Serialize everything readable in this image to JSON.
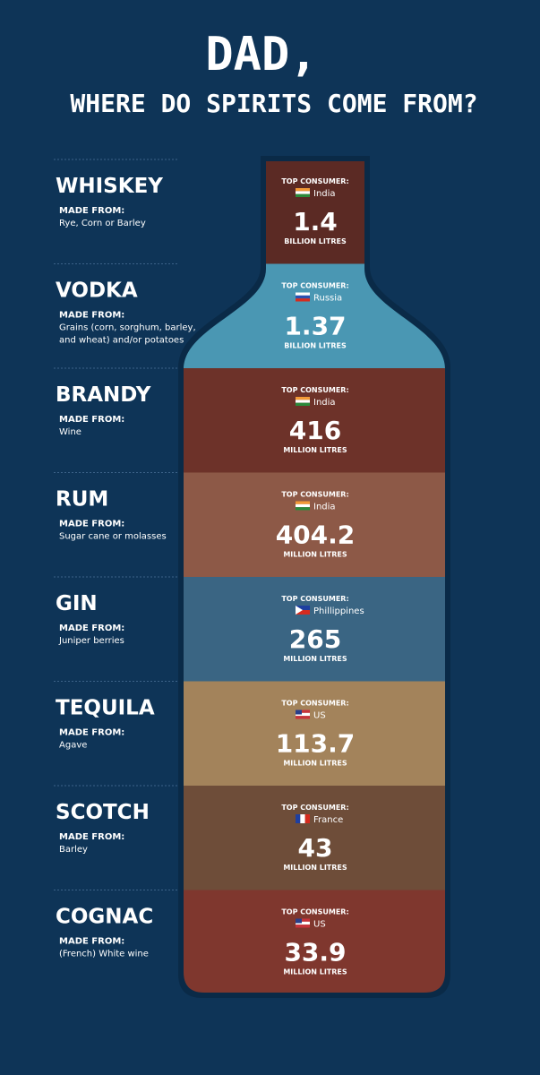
{
  "header": {
    "title": "DAD,",
    "subtitle": "WHERE DO SPIRITS COME FROM?"
  },
  "spirits": [
    {
      "name": "WHISKEY",
      "made_from_label": "MADE FROM:",
      "made_from": [
        "Rye, Corn or Barley"
      ],
      "consumer_label": "TOP CONSUMER:",
      "country": "India",
      "amount": "1.4",
      "unit": "BILLION LITRES",
      "color": "#5b2a24",
      "flag": "in"
    },
    {
      "name": "VODKA",
      "made_from_label": "MADE FROM:",
      "made_from": [
        "Grains (corn, sorghum, barley,",
        "and wheat) and/or potatoes"
      ],
      "consumer_label": "TOP CONSUMER:",
      "country": "Russia",
      "amount": "1.37",
      "unit": "BILLION LITRES",
      "color": "#4a97b3",
      "flag": "ru"
    },
    {
      "name": "BRANDY",
      "made_from_label": "MADE FROM:",
      "made_from": [
        "Wine"
      ],
      "consumer_label": "TOP CONSUMER:",
      "country": "India",
      "amount": "416",
      "unit": "MILLION LITRES",
      "color": "#6d3229",
      "flag": "in"
    },
    {
      "name": "RUM",
      "made_from_label": "MADE FROM:",
      "made_from": [
        "Sugar cane or molasses"
      ],
      "consumer_label": "TOP CONSUMER:",
      "country": "India",
      "amount": "404.2",
      "unit": "MILLION LITRES",
      "color": "#8d5947",
      "flag": "in"
    },
    {
      "name": "GIN",
      "made_from_label": "MADE FROM:",
      "made_from": [
        "Juniper berries"
      ],
      "consumer_label": "TOP CONSUMER:",
      "country": "Phillippines",
      "amount": "265",
      "unit": "MILLION LITRES",
      "color": "#3a6583",
      "flag": "ph"
    },
    {
      "name": "TEQUILA",
      "made_from_label": "MADE FROM:",
      "made_from": [
        "Agave"
      ],
      "consumer_label": "TOP CONSUMER:",
      "country": "US",
      "amount": "113.7",
      "unit": "MILLION LITRES",
      "color": "#a3835b",
      "flag": "us"
    },
    {
      "name": "SCOTCH",
      "made_from_label": "MADE FROM:",
      "made_from": [
        "Barley"
      ],
      "consumer_label": "TOP CONSUMER:",
      "country": "France",
      "amount": "43",
      "unit": "MILLION LITRES",
      "color": "#6e4d39",
      "flag": "fr"
    },
    {
      "name": "COGNAC",
      "made_from_label": "MADE FROM:",
      "made_from": [
        "(French) White wine"
      ],
      "consumer_label": "TOP CONSUMER:",
      "country": "US",
      "amount": "33.9",
      "unit": "MILLION LITRES",
      "color": "#7f372e",
      "flag": "us"
    }
  ]
}
